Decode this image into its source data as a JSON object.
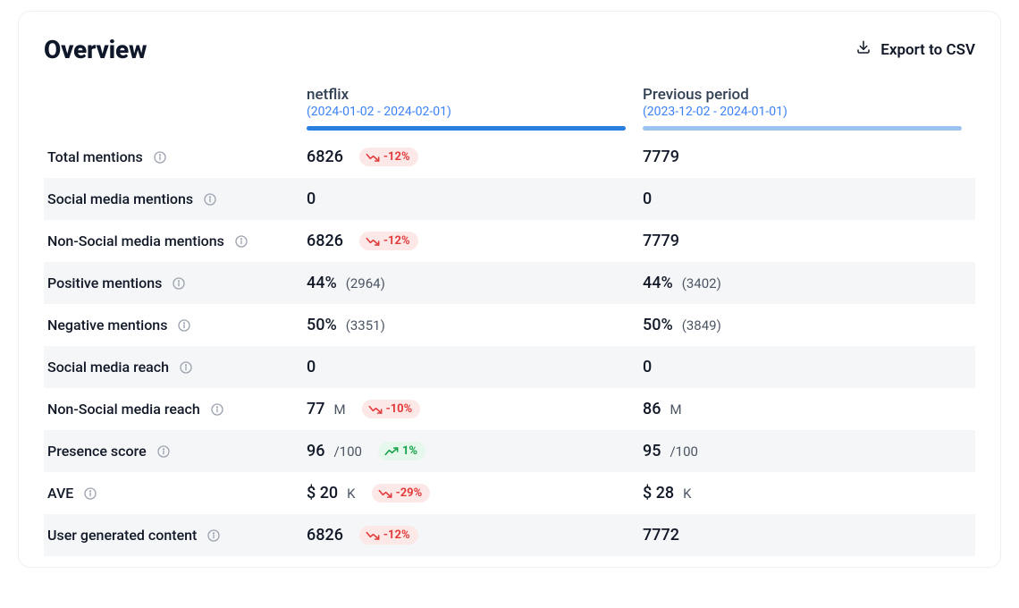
{
  "title": "Overview",
  "export_label": "Export to CSV",
  "colors": {
    "text_primary": "#111827",
    "text_muted": "#4b5563",
    "period_link": "#3b82f6",
    "bar_current": "#2a7de1",
    "bar_previous": "#9cc3f0",
    "row_alt_bg": "#f5f6f8",
    "badge_down_bg": "#fde8e8",
    "badge_down_fg": "#e23b3b",
    "badge_up_bg": "#e6f7ec",
    "badge_up_fg": "#15a34a",
    "info_icon": "#9ca3af"
  },
  "columns": {
    "current": {
      "name": "netflix",
      "period": "(2024-01-02 - 2024-02-01)"
    },
    "previous": {
      "name": "Previous period",
      "period": "(2023-12-02 - 2024-01-01)"
    }
  },
  "rows": [
    {
      "label": "Total mentions",
      "current": {
        "value": "6826"
      },
      "trend": {
        "dir": "down",
        "text": "-12%"
      },
      "previous": {
        "value": "7779"
      }
    },
    {
      "label": "Social media mentions",
      "current": {
        "value": "0"
      },
      "previous": {
        "value": "0"
      }
    },
    {
      "label": "Non-Social media mentions",
      "current": {
        "value": "6826"
      },
      "trend": {
        "dir": "down",
        "text": "-12%"
      },
      "previous": {
        "value": "7779"
      }
    },
    {
      "label": "Positive mentions",
      "current": {
        "value": "44%",
        "sub": "(2964)"
      },
      "previous": {
        "value": "44%",
        "sub": "(3402)"
      }
    },
    {
      "label": "Negative mentions",
      "current": {
        "value": "50%",
        "sub": "(3351)"
      },
      "previous": {
        "value": "50%",
        "sub": "(3849)"
      }
    },
    {
      "label": "Social media reach",
      "current": {
        "value": "0"
      },
      "previous": {
        "value": "0"
      }
    },
    {
      "label": "Non-Social media reach",
      "current": {
        "value": "77",
        "unit": "M"
      },
      "trend": {
        "dir": "down",
        "text": "-10%"
      },
      "previous": {
        "value": "86",
        "unit": "M"
      }
    },
    {
      "label": "Presence score",
      "current": {
        "value": "96",
        "sub": "/100"
      },
      "trend": {
        "dir": "up",
        "text": "1%"
      },
      "previous": {
        "value": "95",
        "sub": "/100"
      }
    },
    {
      "label": "AVE",
      "current": {
        "value": "$ 20",
        "unit": "K"
      },
      "trend": {
        "dir": "down",
        "text": "-29%"
      },
      "previous": {
        "value": "$ 28",
        "unit": "K"
      }
    },
    {
      "label": "User generated content",
      "current": {
        "value": "6826"
      },
      "trend": {
        "dir": "down",
        "text": "-12%"
      },
      "previous": {
        "value": "7772"
      }
    }
  ]
}
